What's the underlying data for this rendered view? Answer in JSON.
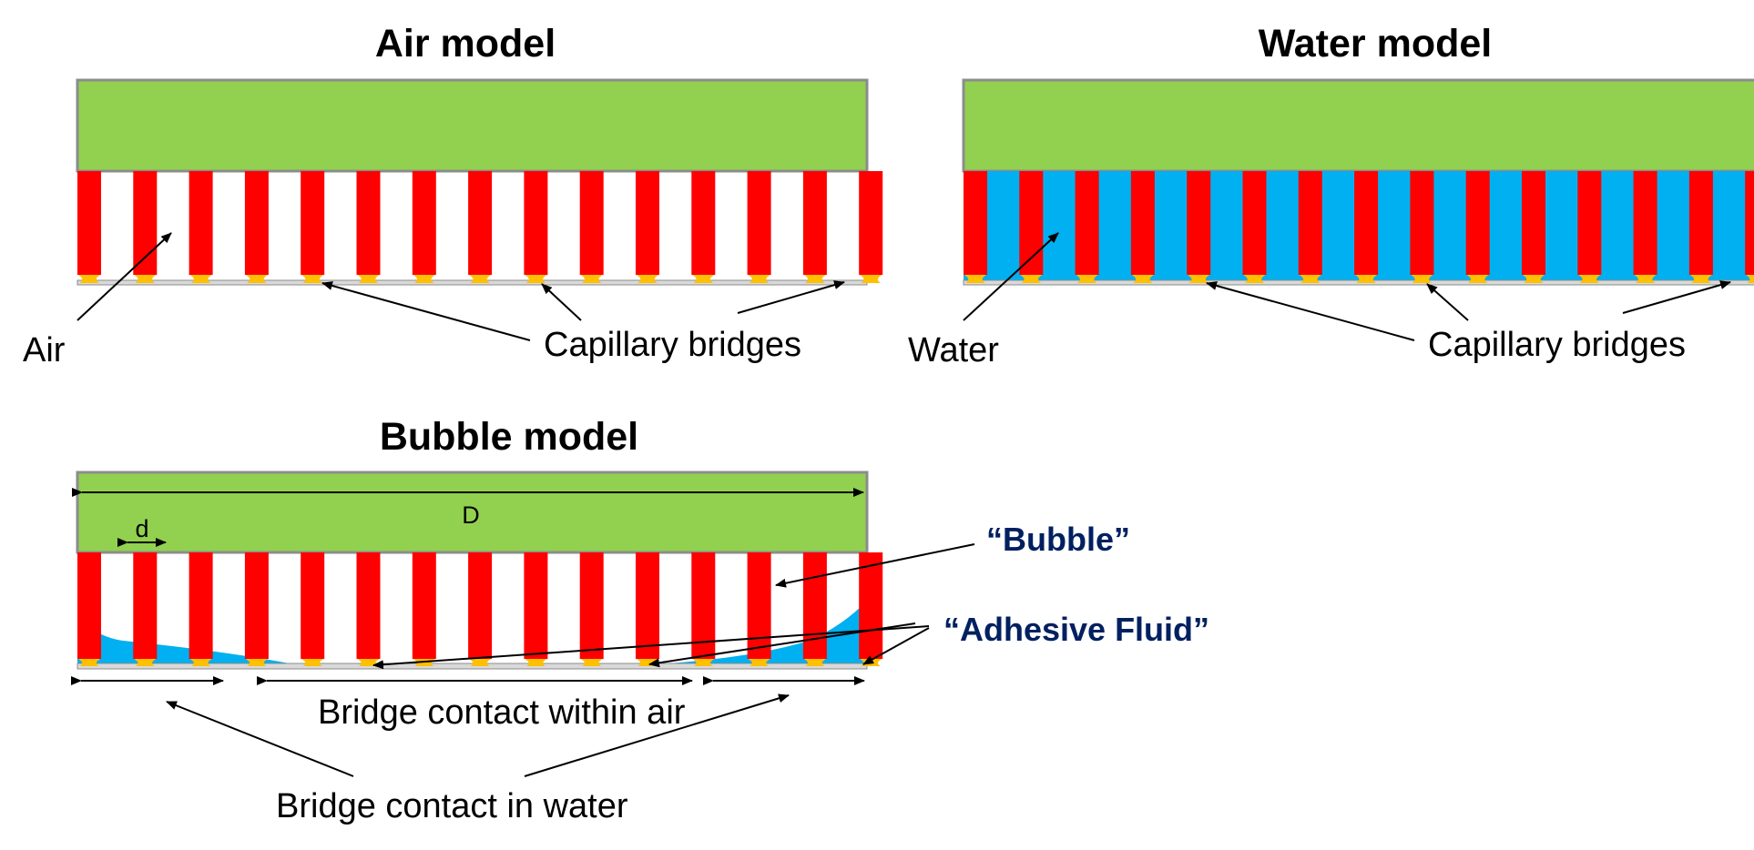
{
  "colors": {
    "plate": "#92d050",
    "plate_border": "#8c8c8c",
    "pillar": "#ff0000",
    "bridge": "#ffc000",
    "water": "#00b0f0",
    "accent_text": "#002060",
    "line": "#000000"
  },
  "panels": {
    "air": {
      "title": "Air model",
      "medium_label": "Air",
      "bridges_label": "Capillary bridges"
    },
    "water": {
      "title": "Water model",
      "medium_label": "Water",
      "bridges_label": "Capillary bridges"
    },
    "bubble": {
      "title": "Bubble model",
      "dim_D": "D",
      "dim_d": "d",
      "bubble_label": "“Bubble”",
      "fluid_label": "“Adhesive Fluid”",
      "air_contact_label": "Bridge contact within air",
      "water_contact_label": "Bridge contact in water"
    }
  }
}
